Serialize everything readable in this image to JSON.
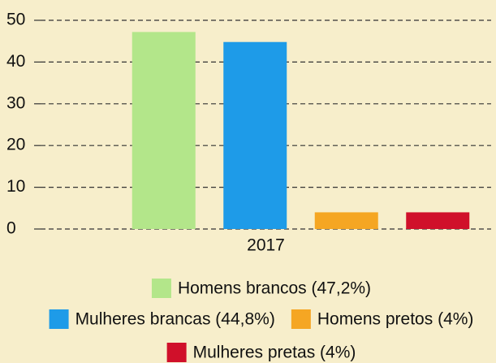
{
  "chart_data": {
    "type": "bar",
    "categories": [
      "2017"
    ],
    "series": [
      {
        "name": "Homens brancos (47,2%)",
        "color": "#b3e68a",
        "values": [
          47.2
        ]
      },
      {
        "name": "Mulheres brancas (44,8%)",
        "color": "#1e9be8",
        "values": [
          44.8
        ]
      },
      {
        "name": "Homens pretos (4%)",
        "color": "#f5a623",
        "values": [
          4
        ]
      },
      {
        "name": "Mulheres pretas (4%)",
        "color": "#d0102a",
        "values": [
          4
        ]
      }
    ],
    "ylim": [
      0,
      50
    ],
    "yticks": [
      0,
      10,
      20,
      30,
      40,
      50
    ],
    "grid": true,
    "legend": "bottom"
  }
}
